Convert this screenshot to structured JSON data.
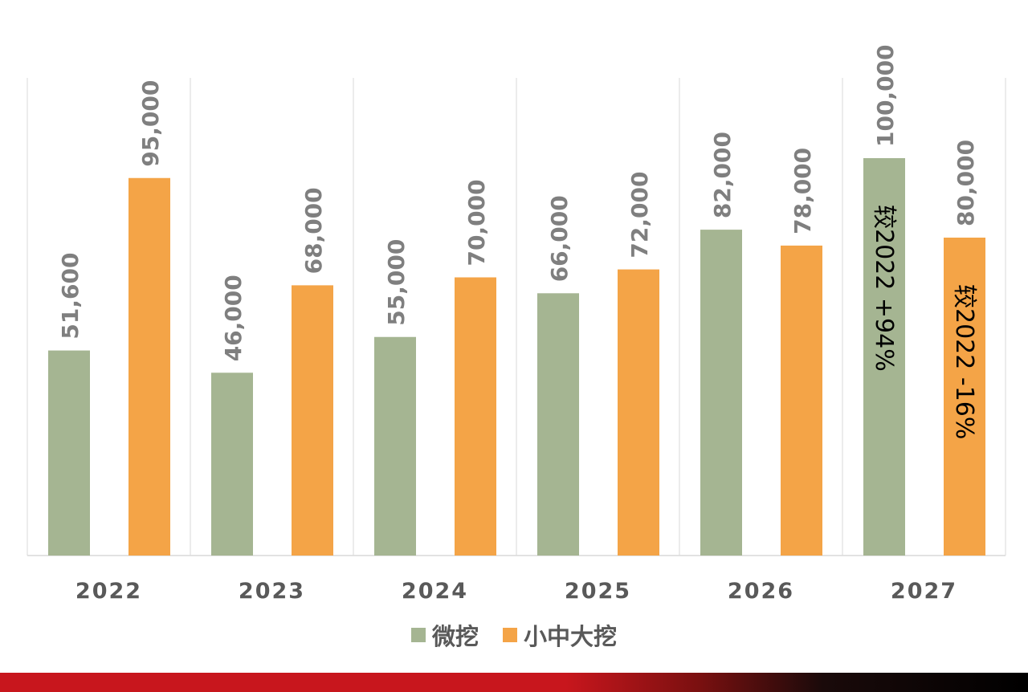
{
  "chart_data": {
    "type": "bar",
    "categories": [
      "2022",
      "2023",
      "2024",
      "2025",
      "2026",
      "2027"
    ],
    "series": [
      {
        "name": "微挖",
        "values": [
          51600,
          46000,
          55000,
          66000,
          82000,
          100000
        ],
        "labels": [
          "51,600",
          "46,000",
          "55,000",
          "66,000",
          "82,000",
          "100,000"
        ],
        "color": "#a5b592"
      },
      {
        "name": "小中大挖",
        "values": [
          95000,
          68000,
          70000,
          72000,
          78000,
          80000
        ],
        "labels": [
          "95,000",
          "68,000",
          "70,000",
          "72,000",
          "78,000",
          "80,000"
        ],
        "color": "#f4a447"
      }
    ],
    "annotations": [
      {
        "category": "2027",
        "series": "微挖",
        "text": "较2022 +94%"
      },
      {
        "category": "2027",
        "series": "小中大挖",
        "text": "较2022 -16%"
      }
    ],
    "ylim": [
      0,
      120000
    ],
    "title": "",
    "xlabel": "",
    "ylabel": "",
    "grid": "vertical separators between categories",
    "legend": "bottom-center"
  },
  "colors": {
    "axis": "#d9d9d9",
    "label_text": "#7f7f7f",
    "tick_text": "#595959",
    "annotation_text": "#000000",
    "footer_red": "#c8161d",
    "footer_black": "#000000"
  }
}
